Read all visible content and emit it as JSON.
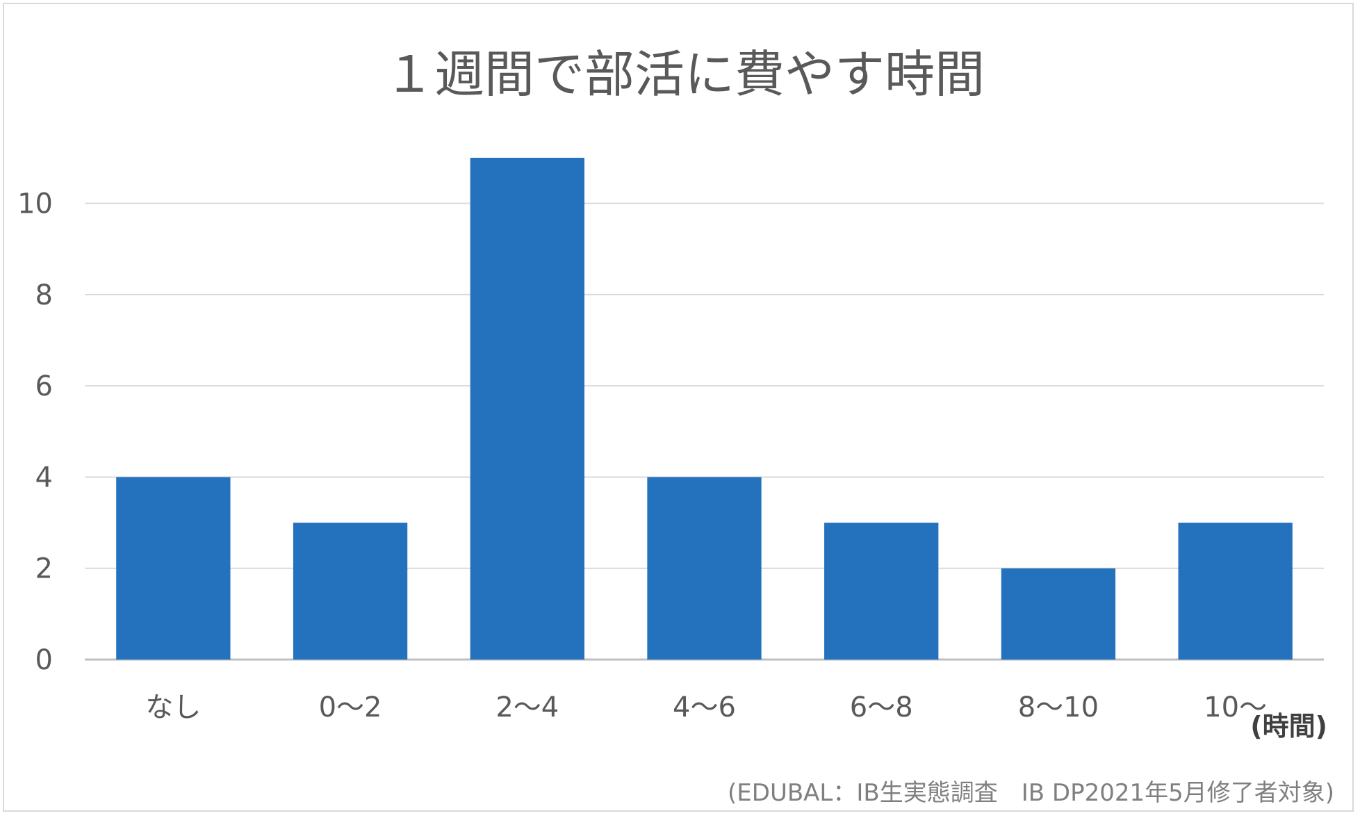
{
  "chart_data": {
    "type": "bar",
    "title": "１週間で部活に費やす時間",
    "categories": [
      "なし",
      "0～2",
      "2～4",
      "4～6",
      "6～8",
      "8～10",
      "10～"
    ],
    "series": [
      {
        "values": [
          4,
          3,
          11,
          4,
          3,
          2,
          3
        ]
      }
    ],
    "xlabel": "(時間)",
    "ylabel": "",
    "ylim": [
      0,
      11
    ],
    "yticks": [
      0,
      2,
      4,
      6,
      8,
      10
    ],
    "grid": true,
    "legend": "none",
    "bar_color": "#2471BD",
    "source_note": "(EDUBAL：IB生実態調査　IB DP2021年5月修了者対象)"
  }
}
